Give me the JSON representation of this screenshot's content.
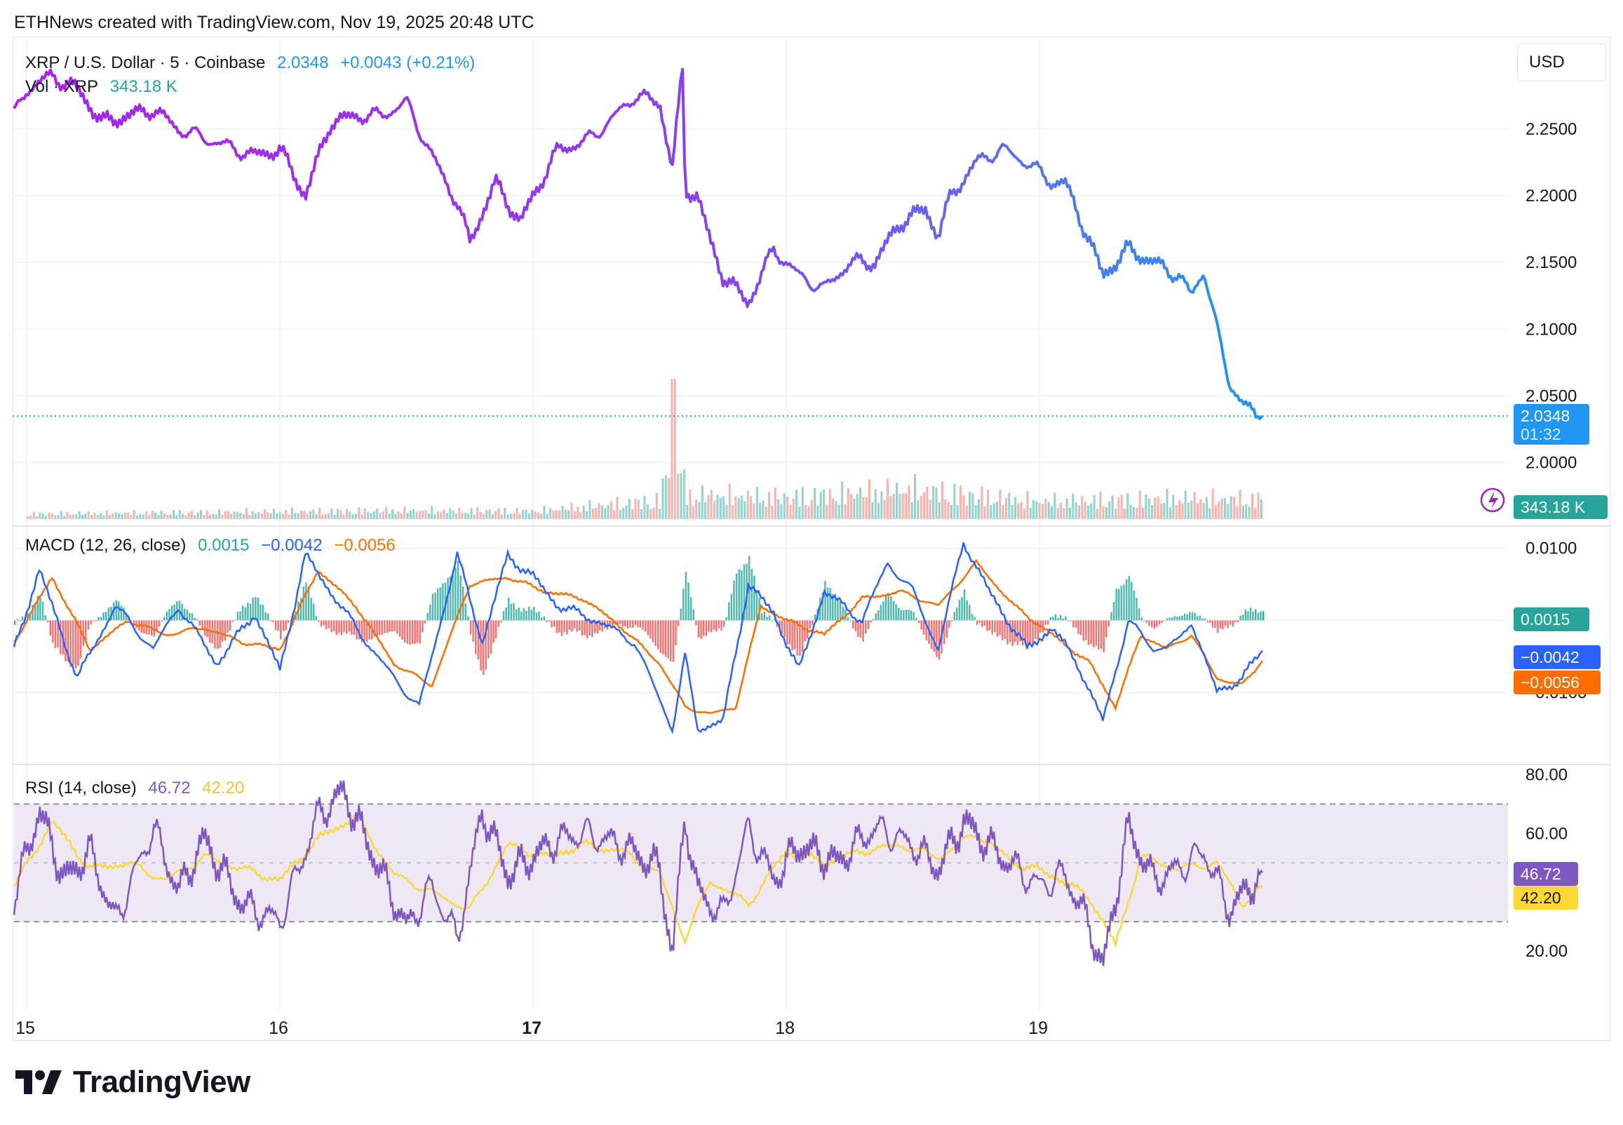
{
  "header": {
    "note": "ETHNews created with TradingView.com, Nov 19, 2025 20:48 UTC"
  },
  "brand": {
    "name": "TradingView",
    "icon": "tradingview-logo-icon"
  },
  "currency_button": "USD",
  "price_pane": {
    "symbol": "XRP / U.S. Dollar · 5 · Coinbase",
    "last": "2.0348",
    "change": "+0.0043 (+0.21%)",
    "volume_label": "Vol · XRP",
    "volume_value": "343.18 K",
    "price_tag": "2.0348",
    "countdown": "01:32",
    "volume_tag": "343.18 K"
  },
  "macd_pane": {
    "title": "MACD (12, 26, close)",
    "hist": "0.0015",
    "macd": "−0.0042",
    "signal": "−0.0056"
  },
  "rsi_pane": {
    "title": "RSI (14, close)",
    "rsi": "46.72",
    "rsi_ma": "42.20"
  },
  "colors": {
    "price_line_start": "#aa22ee",
    "price_line_end": "#2196f3",
    "vol_up": "#80cbc4",
    "vol_down": "#f5a6a0",
    "macd_line": "#2962ff",
    "signal_line": "#ff6d00",
    "hist_up": "#26a69a",
    "hist_down": "#ef5350",
    "rsi_line": "#7e57c2",
    "rsi_ma": "#fdd835",
    "rsi_band": "#ede7f6"
  },
  "chart_data": [
    {
      "type": "line",
      "title": "XRP / U.S. Dollar · 5 · Coinbase",
      "x_ticks": [
        "15",
        "16",
        "17",
        "18",
        "19"
      ],
      "ylim": [
        1.955,
        2.31
      ],
      "y_ticks": [
        2.0,
        2.05,
        2.1,
        2.15,
        2.2,
        2.25
      ],
      "y_tick_labels": [
        "2.0000",
        "2.0500",
        "2.1000",
        "2.1500",
        "2.2000",
        "2.2500"
      ],
      "series": [
        {
          "x": [
            14.95,
            15.0,
            15.1,
            15.2,
            15.3,
            15.4,
            15.5,
            15.6,
            15.75,
            15.9,
            16.0,
            16.1,
            16.2,
            16.3,
            16.4,
            16.5,
            16.6,
            16.7,
            16.75,
            16.85,
            16.95,
            17.0,
            17.1,
            17.2,
            17.3,
            17.4,
            17.5,
            17.55,
            17.59,
            17.6,
            17.65,
            17.7,
            17.75,
            17.85,
            17.95,
            18.05,
            18.15,
            18.25,
            18.35,
            18.45,
            18.55,
            18.6,
            18.65,
            18.75,
            18.85,
            18.95,
            19.05,
            19.1,
            19.2,
            19.25,
            19.35,
            19.45,
            19.55,
            19.6,
            19.65,
            19.7,
            19.75,
            19.8,
            19.85,
            19.88
          ],
          "values": [
            2.26,
            2.28,
            2.29,
            2.28,
            2.255,
            2.26,
            2.265,
            2.25,
            2.24,
            2.23,
            2.235,
            2.2,
            2.255,
            2.26,
            2.26,
            2.27,
            2.23,
            2.195,
            2.165,
            2.21,
            2.18,
            2.2,
            2.235,
            2.24,
            2.255,
            2.275,
            2.27,
            2.22,
            2.295,
            2.205,
            2.2,
            2.165,
            2.14,
            2.12,
            2.16,
            2.14,
            2.13,
            2.15,
            2.15,
            2.18,
            2.19,
            2.17,
            2.2,
            2.225,
            2.235,
            2.225,
            2.21,
            2.21,
            2.165,
            2.14,
            2.16,
            2.15,
            2.14,
            2.125,
            2.145,
            2.1,
            2.06,
            2.045,
            2.035,
            2.0348
          ]
        }
      ],
      "volume": {
        "name": "Vol · XRP",
        "last": "343.18 K",
        "x": [
          15.0,
          15.5,
          16.0,
          16.5,
          17.0,
          17.5,
          17.55,
          17.6,
          18.0,
          18.5,
          19.0,
          19.5,
          19.88
        ],
        "values": [
          90,
          110,
          130,
          150,
          140,
          330,
          1600,
          420,
          380,
          520,
          300,
          360,
          343.18
        ]
      }
    },
    {
      "type": "line",
      "title": "MACD (12, 26, close)",
      "ylim": [
        -0.0195,
        0.0125
      ],
      "y_ticks": [
        -0.01,
        0.0,
        0.01
      ],
      "y_tick_labels": [
        "−0.0100",
        "0.0000",
        "0.0100"
      ],
      "series": [
        {
          "name": "MACD",
          "x": [
            14.95,
            15.05,
            15.2,
            15.35,
            15.5,
            15.6,
            15.75,
            15.9,
            16.0,
            16.1,
            16.2,
            16.3,
            16.45,
            16.55,
            16.7,
            16.8,
            16.9,
            17.0,
            17.1,
            17.25,
            17.4,
            17.55,
            17.6,
            17.65,
            17.75,
            17.85,
            17.95,
            18.05,
            18.15,
            18.3,
            18.4,
            18.5,
            18.6,
            18.7,
            18.8,
            18.95,
            19.05,
            19.15,
            19.25,
            19.35,
            19.45,
            19.55,
            19.6,
            19.7,
            19.8,
            19.88
          ],
          "values": [
            -0.004,
            0.007,
            -0.008,
            0.002,
            -0.004,
            0.002,
            -0.006,
            0.001,
            -0.007,
            0.009,
            0.004,
            -0.001,
            -0.008,
            -0.012,
            0.009,
            -0.003,
            0.009,
            0.006,
            0.002,
            0.0,
            -0.003,
            -0.015,
            -0.005,
            -0.015,
            -0.014,
            0.005,
            0.001,
            -0.007,
            0.004,
            0.0,
            0.008,
            0.004,
            -0.004,
            0.011,
            0.004,
            -0.004,
            -0.001,
            -0.006,
            -0.014,
            0.0,
            -0.004,
            -0.003,
            -0.0,
            -0.01,
            -0.008,
            -0.0042
          ]
        },
        {
          "name": "Signal",
          "x": [
            14.95,
            15.1,
            15.25,
            15.4,
            15.55,
            15.7,
            15.85,
            16.0,
            16.15,
            16.3,
            16.45,
            16.6,
            16.75,
            16.9,
            17.05,
            17.2,
            17.35,
            17.5,
            17.6,
            17.7,
            17.8,
            17.9,
            18.0,
            18.15,
            18.3,
            18.45,
            18.6,
            18.75,
            18.9,
            19.05,
            19.2,
            19.3,
            19.4,
            19.5,
            19.6,
            19.7,
            19.8,
            19.88
          ],
          "values": [
            -0.003,
            0.006,
            -0.004,
            0.0,
            -0.002,
            -0.001,
            -0.003,
            -0.004,
            0.007,
            0.002,
            -0.006,
            -0.009,
            0.005,
            0.006,
            0.004,
            0.003,
            -0.001,
            -0.006,
            -0.012,
            -0.013,
            -0.012,
            0.002,
            0.0,
            -0.002,
            0.003,
            0.004,
            0.002,
            0.008,
            0.002,
            -0.002,
            -0.006,
            -0.012,
            -0.002,
            -0.004,
            -0.002,
            -0.008,
            -0.009,
            -0.0056
          ]
        }
      ]
    },
    {
      "type": "line",
      "title": "RSI (14, close)",
      "ylim": [
        0,
        82
      ],
      "y_ticks": [
        20,
        40,
        60,
        80
      ],
      "y_tick_labels": [
        "20.00",
        "40.00",
        "60.00",
        "80.00"
      ],
      "bands": [
        30,
        50,
        70
      ],
      "series": [
        {
          "name": "RSI",
          "x": [
            14.95,
            15.05,
            15.15,
            15.25,
            15.35,
            15.5,
            15.6,
            15.7,
            15.85,
            16.0,
            16.15,
            16.25,
            16.35,
            16.5,
            16.6,
            16.7,
            16.8,
            16.9,
            17.0,
            17.1,
            17.2,
            17.35,
            17.5,
            17.55,
            17.6,
            17.65,
            17.75,
            17.85,
            17.95,
            18.05,
            18.2,
            18.35,
            18.5,
            18.6,
            18.7,
            18.85,
            19.0,
            19.1,
            19.2,
            19.25,
            19.35,
            19.45,
            19.55,
            19.65,
            19.75,
            19.88
          ],
          "values": [
            38,
            68,
            44,
            54,
            30,
            62,
            40,
            58,
            36,
            30,
            66,
            74,
            56,
            28,
            42,
            24,
            68,
            46,
            52,
            58,
            60,
            56,
            48,
            18,
            66,
            40,
            32,
            62,
            44,
            56,
            50,
            62,
            56,
            48,
            64,
            52,
            42,
            46,
            28,
            14,
            62,
            44,
            48,
            54,
            34,
            46.72
          ]
        },
        {
          "name": "RSI-based MA",
          "x": [
            14.95,
            15.1,
            15.25,
            15.4,
            15.55,
            15.7,
            15.85,
            16.0,
            16.15,
            16.3,
            16.45,
            16.6,
            16.75,
            16.9,
            17.05,
            17.2,
            17.35,
            17.5,
            17.6,
            17.7,
            17.85,
            18.0,
            18.15,
            18.3,
            18.45,
            18.6,
            18.75,
            18.9,
            19.05,
            19.2,
            19.3,
            19.4,
            19.55,
            19.7,
            19.8,
            19.88
          ],
          "values": [
            42,
            64,
            48,
            50,
            44,
            52,
            48,
            44,
            58,
            66,
            46,
            40,
            34,
            56,
            52,
            56,
            54,
            46,
            24,
            44,
            36,
            54,
            50,
            54,
            56,
            52,
            60,
            50,
            46,
            38,
            22,
            52,
            48,
            50,
            36,
            42.2
          ]
        }
      ]
    }
  ]
}
